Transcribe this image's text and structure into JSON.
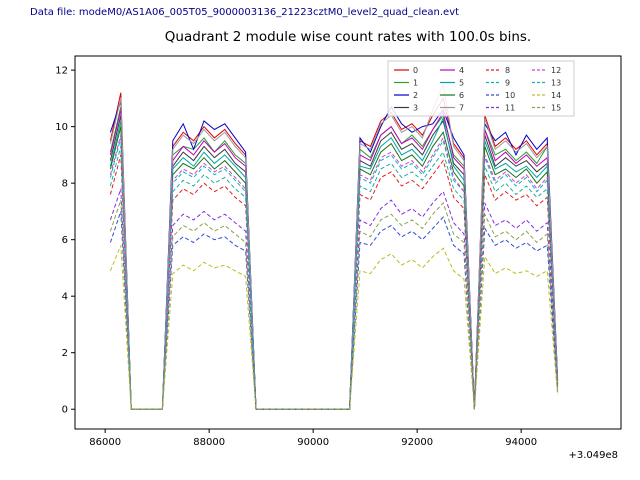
{
  "header": {
    "data_file": "Data file: modeM0/AS1A06_005T05_9000003136_21223cztM0_level2_quad_clean.evt"
  },
  "chart_data": {
    "type": "line",
    "title": "Quadrant 2 module wise count rates with 100.0s bins.",
    "xlabel": "",
    "ylabel": "",
    "x_offset_label": "+3.049e8",
    "xlim": [
      85420,
      95920
    ],
    "ylim": [
      -0.7,
      12.5
    ],
    "xticks": [
      86000,
      88000,
      90000,
      92000,
      94000
    ],
    "yticks": [
      0,
      2,
      4,
      6,
      8,
      10,
      12
    ],
    "legend_position": "upper right",
    "grid": false,
    "x": [
      86100,
      86300,
      86500,
      86700,
      86900,
      87100,
      87300,
      87500,
      87700,
      87900,
      88100,
      88300,
      88500,
      88700,
      88900,
      89100,
      89300,
      89500,
      89700,
      89900,
      90100,
      90300,
      90500,
      90700,
      90900,
      91100,
      91300,
      91500,
      91700,
      91900,
      92100,
      92300,
      92500,
      92700,
      92900,
      93100,
      93300,
      93500,
      93700,
      93900,
      94100,
      94300,
      94500,
      94700
    ],
    "series": [
      {
        "name": "0",
        "color": "#e00000",
        "dash": false,
        "values": [
          9.5,
          11.2,
          0,
          0,
          0,
          0,
          9.3,
          9.8,
          9.5,
          10.0,
          9.6,
          9.9,
          9.4,
          9.0,
          0,
          0,
          0,
          0,
          0,
          0,
          0,
          0,
          0,
          0,
          9.5,
          9.3,
          10.2,
          10.5,
          9.9,
          10.1,
          9.7,
          10.4,
          11.0,
          9.4,
          8.9,
          0,
          10.4,
          9.3,
          9.6,
          9.2,
          9.5,
          9.0,
          9.4,
          1.0
        ]
      },
      {
        "name": "1",
        "color": "#2ca02c",
        "dash": false,
        "values": [
          9.1,
          10.7,
          0,
          0,
          0,
          0,
          9.0,
          9.3,
          9.2,
          9.6,
          9.1,
          9.5,
          9.0,
          8.7,
          0,
          0,
          0,
          0,
          0,
          0,
          0,
          0,
          0,
          0,
          9.2,
          8.9,
          9.7,
          10.0,
          9.4,
          9.7,
          9.3,
          9.9,
          10.4,
          9.0,
          8.6,
          0,
          9.9,
          9.0,
          9.2,
          8.8,
          9.1,
          8.7,
          9.3,
          0.9
        ]
      },
      {
        "name": "2",
        "color": "#0000cd",
        "dash": false,
        "values": [
          9.8,
          10.9,
          0,
          0,
          0,
          0,
          9.5,
          10.1,
          9.2,
          10.2,
          9.9,
          10.1,
          9.6,
          9.1,
          0,
          0,
          0,
          0,
          0,
          0,
          0,
          0,
          0,
          0,
          9.6,
          9.1,
          10.0,
          10.7,
          10.1,
          9.8,
          10.0,
          10.1,
          10.6,
          9.6,
          9.0,
          0,
          10.1,
          9.5,
          9.8,
          9.0,
          9.7,
          9.2,
          9.6,
          1.1
        ]
      },
      {
        "name": "3",
        "color": "#3a3a3a",
        "dash": false,
        "values": [
          8.8,
          10.4,
          0,
          0,
          0,
          0,
          8.6,
          9.1,
          8.8,
          9.3,
          8.9,
          9.2,
          8.7,
          8.4,
          0,
          0,
          0,
          0,
          0,
          0,
          0,
          0,
          0,
          0,
          8.8,
          8.6,
          9.5,
          9.8,
          9.2,
          9.4,
          9.0,
          9.7,
          10.2,
          8.7,
          8.3,
          0,
          9.7,
          8.6,
          8.9,
          8.6,
          8.8,
          8.4,
          8.7,
          0.9
        ]
      },
      {
        "name": "4",
        "color": "#c000c0",
        "dash": false,
        "values": [
          9.0,
          10.6,
          0,
          0,
          0,
          0,
          8.8,
          9.3,
          9.0,
          9.5,
          9.1,
          9.4,
          8.9,
          8.6,
          0,
          0,
          0,
          0,
          0,
          0,
          0,
          0,
          0,
          0,
          9.0,
          8.8,
          9.7,
          10.0,
          9.4,
          9.6,
          9.2,
          9.9,
          10.5,
          8.9,
          8.5,
          0,
          9.9,
          8.8,
          9.1,
          8.7,
          9.0,
          8.6,
          8.9,
          1.0
        ]
      },
      {
        "name": "5",
        "color": "#00a6a6",
        "dash": false,
        "values": [
          8.6,
          10.2,
          0,
          0,
          0,
          0,
          8.5,
          8.9,
          8.6,
          9.1,
          8.7,
          9.0,
          8.6,
          8.2,
          0,
          0,
          0,
          0,
          0,
          0,
          0,
          0,
          0,
          0,
          8.6,
          8.5,
          9.3,
          9.6,
          9.0,
          9.2,
          8.8,
          9.5,
          10.3,
          8.6,
          8.1,
          0,
          9.5,
          8.5,
          8.7,
          8.4,
          8.6,
          8.2,
          8.6,
          0.9
        ]
      },
      {
        "name": "6",
        "color": "#177317",
        "dash": false,
        "values": [
          8.5,
          10.0,
          0,
          0,
          0,
          0,
          8.3,
          8.7,
          8.5,
          8.9,
          8.5,
          8.8,
          8.4,
          8.0,
          0,
          0,
          0,
          0,
          0,
          0,
          0,
          0,
          0,
          0,
          8.5,
          8.3,
          9.1,
          9.4,
          8.8,
          9.0,
          8.6,
          9.3,
          9.8,
          8.4,
          7.9,
          0,
          9.3,
          8.3,
          8.5,
          8.2,
          8.5,
          8.0,
          8.4,
          0.9
        ]
      },
      {
        "name": "7",
        "color": "#9a9a9a",
        "dash": false,
        "values": [
          9.4,
          11.0,
          0,
          0,
          0,
          0,
          9.2,
          9.7,
          9.4,
          9.9,
          9.5,
          9.8,
          9.3,
          8.9,
          0,
          0,
          0,
          0,
          0,
          0,
          0,
          0,
          0,
          0,
          9.4,
          9.2,
          10.1,
          10.4,
          9.8,
          10.0,
          9.6,
          10.6,
          11.5,
          9.3,
          8.8,
          0,
          10.3,
          9.2,
          9.5,
          9.1,
          9.4,
          8.9,
          9.3,
          1.0
        ]
      },
      {
        "name": "8",
        "color": "#e02020",
        "dash": true,
        "values": [
          7.6,
          9.0,
          0,
          0,
          0,
          0,
          7.4,
          7.8,
          7.6,
          8.0,
          7.7,
          7.9,
          7.5,
          7.2,
          0,
          0,
          0,
          0,
          0,
          0,
          0,
          0,
          0,
          0,
          7.6,
          7.4,
          8.2,
          8.4,
          7.9,
          8.1,
          7.8,
          8.3,
          8.8,
          7.5,
          7.1,
          0,
          8.3,
          7.4,
          7.7,
          7.4,
          7.6,
          7.2,
          7.5,
          0.8
        ]
      },
      {
        "name": "9",
        "color": "#00b8b8",
        "dash": true,
        "values": [
          8.2,
          9.6,
          0,
          0,
          0,
          0,
          8.0,
          8.4,
          8.2,
          8.6,
          8.3,
          8.5,
          8.1,
          7.7,
          0,
          0,
          0,
          0,
          0,
          0,
          0,
          0,
          0,
          0,
          8.2,
          8.0,
          8.8,
          9.0,
          8.5,
          8.7,
          8.3,
          8.9,
          9.5,
          8.1,
          7.7,
          0,
          8.9,
          8.0,
          8.3,
          7.9,
          8.2,
          7.7,
          8.1,
          0.9
        ]
      },
      {
        "name": "10",
        "color": "#2b50d6",
        "dash": true,
        "values": [
          5.9,
          7.0,
          0,
          0,
          0,
          0,
          5.8,
          6.1,
          5.9,
          6.2,
          6.0,
          6.1,
          5.8,
          5.6,
          0,
          0,
          0,
          0,
          0,
          0,
          0,
          0,
          0,
          0,
          5.9,
          5.8,
          6.3,
          6.5,
          6.1,
          6.3,
          6.0,
          6.4,
          6.8,
          5.8,
          5.5,
          0,
          6.4,
          5.8,
          6.0,
          5.7,
          5.9,
          5.6,
          5.8,
          0.6
        ]
      },
      {
        "name": "11",
        "color": "#8a2be2",
        "dash": true,
        "values": [
          6.7,
          7.8,
          0,
          0,
          0,
          0,
          6.5,
          6.9,
          6.7,
          7.0,
          6.7,
          6.9,
          6.6,
          6.3,
          0,
          0,
          0,
          0,
          0,
          0,
          0,
          0,
          0,
          0,
          6.7,
          6.5,
          7.1,
          7.4,
          6.9,
          7.1,
          6.8,
          7.3,
          7.7,
          6.6,
          6.2,
          0,
          7.3,
          6.5,
          6.7,
          6.4,
          6.7,
          6.3,
          6.6,
          0.7
        ]
      },
      {
        "name": "12",
        "color": "#d63fd6",
        "dash": true,
        "values": [
          8.3,
          9.7,
          0,
          0,
          0,
          0,
          8.1,
          8.5,
          8.3,
          8.7,
          8.4,
          8.6,
          8.2,
          7.8,
          0,
          0,
          0,
          0,
          0,
          0,
          0,
          0,
          0,
          0,
          8.3,
          8.1,
          8.9,
          9.1,
          8.6,
          8.8,
          8.4,
          9.0,
          9.6,
          8.2,
          7.7,
          0,
          9.0,
          8.1,
          8.4,
          8.0,
          8.3,
          7.8,
          8.2,
          0.9
        ]
      },
      {
        "name": "13",
        "color": "#1fae9b",
        "dash": true,
        "values": [
          7.9,
          9.3,
          0,
          0,
          0,
          0,
          7.7,
          8.1,
          7.9,
          8.3,
          8.0,
          8.2,
          7.8,
          7.5,
          0,
          0,
          0,
          0,
          0,
          0,
          0,
          0,
          0,
          0,
          7.9,
          7.7,
          8.5,
          8.7,
          8.2,
          8.4,
          8.1,
          8.6,
          9.1,
          7.8,
          7.4,
          0,
          8.6,
          7.7,
          8.0,
          7.6,
          7.9,
          7.5,
          7.8,
          0.8
        ]
      },
      {
        "name": "14",
        "color": "#bdbd1e",
        "dash": true,
        "values": [
          4.9,
          5.8,
          0,
          0,
          0,
          0,
          4.8,
          5.1,
          4.9,
          5.2,
          5.0,
          5.1,
          4.9,
          4.7,
          0,
          0,
          0,
          0,
          0,
          0,
          0,
          0,
          0,
          0,
          4.9,
          4.8,
          5.3,
          5.5,
          5.1,
          5.3,
          5.0,
          5.4,
          5.7,
          4.9,
          4.6,
          0,
          5.4,
          4.8,
          5.0,
          4.8,
          4.9,
          4.7,
          4.9,
          0.5
        ]
      },
      {
        "name": "15",
        "color": "#8f9f4f",
        "dash": true,
        "values": [
          6.3,
          7.4,
          0,
          0,
          0,
          0,
          6.1,
          6.5,
          6.3,
          6.6,
          6.3,
          6.5,
          6.2,
          5.9,
          0,
          0,
          0,
          0,
          0,
          0,
          0,
          0,
          0,
          0,
          6.3,
          6.1,
          6.7,
          6.9,
          6.5,
          6.7,
          6.4,
          6.9,
          7.3,
          6.2,
          5.9,
          0,
          6.9,
          6.1,
          6.3,
          6.0,
          6.3,
          5.9,
          6.2,
          0.7
        ]
      }
    ]
  }
}
